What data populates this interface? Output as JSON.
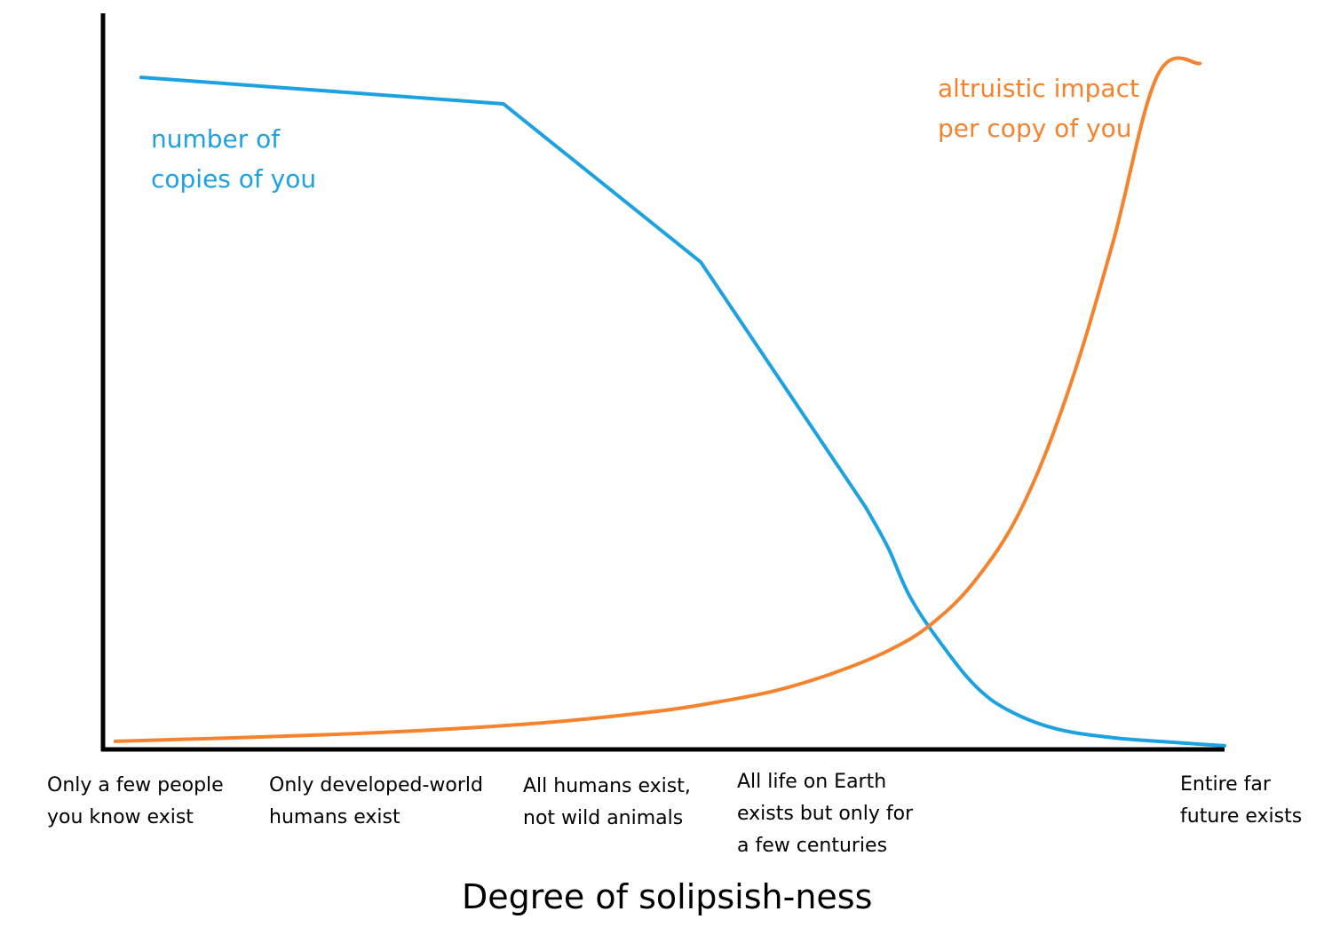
{
  "chart_data": {
    "type": "line",
    "xlabel": "Degree of solipsish-ness",
    "ylabel": "",
    "x_categories": [
      "Only a few people\nyou know exist",
      "Only developed-world\nhumans exist",
      "All humans exist,\nnot wild animals",
      "All life on Earth\nexists but only for\na few centuries",
      "Entire far\nfuture exists"
    ],
    "xlim": [
      0,
      1
    ],
    "ylim": [
      0,
      1
    ],
    "grid": false,
    "legend": "none",
    "series": [
      {
        "name": "number of\ncopies of you",
        "color": "#1ea1e0",
        "points": [
          [
            0.034,
            0.913
          ],
          [
            0.357,
            0.877
          ],
          [
            0.533,
            0.662
          ],
          [
            0.68,
            0.329
          ],
          [
            0.7,
            0.274
          ],
          [
            0.72,
            0.206
          ],
          [
            0.75,
            0.138
          ],
          [
            0.78,
            0.083
          ],
          [
            0.81,
            0.051
          ],
          [
            0.85,
            0.028
          ],
          [
            0.9,
            0.016
          ],
          [
            0.96,
            0.009
          ],
          [
            1.0,
            0.005
          ]
        ]
      },
      {
        "name": "altruistic impact\nper copy of you",
        "color": "#f5822d",
        "points": [
          [
            0.011,
            0.011
          ],
          [
            0.1,
            0.015
          ],
          [
            0.2,
            0.02
          ],
          [
            0.3,
            0.027
          ],
          [
            0.4,
            0.037
          ],
          [
            0.5,
            0.053
          ],
          [
            0.55,
            0.065
          ],
          [
            0.6,
            0.08
          ],
          [
            0.65,
            0.103
          ],
          [
            0.7,
            0.134
          ],
          [
            0.74,
            0.172
          ],
          [
            0.78,
            0.234
          ],
          [
            0.82,
            0.331
          ],
          [
            0.86,
            0.484
          ],
          [
            0.9,
            0.686
          ],
          [
            0.94,
            0.915
          ],
          [
            0.978,
            0.932
          ]
        ]
      }
    ]
  }
}
